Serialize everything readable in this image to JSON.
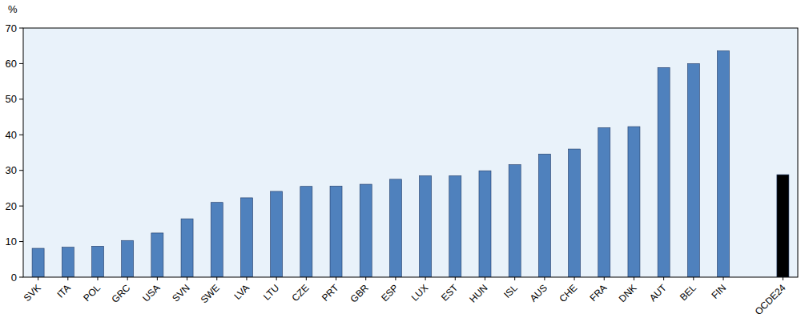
{
  "chart_data": {
    "type": "bar",
    "y_label": "%",
    "categories": [
      "SVK",
      "ITA",
      "POL",
      "GRC",
      "USA",
      "SVN",
      "SWE",
      "LVA",
      "LTU",
      "CZE",
      "PRT",
      "GBR",
      "ESP",
      "LUX",
      "EST",
      "HUN",
      "ISL",
      "AUS",
      "CHE",
      "FRA",
      "DNK",
      "AUT",
      "BEL",
      "FIN",
      null,
      "OCDE24"
    ],
    "values": [
      8.1,
      8.4,
      8.7,
      10.3,
      12.4,
      16.4,
      21.0,
      22.3,
      24.1,
      25.5,
      25.6,
      26.1,
      27.5,
      28.5,
      28.5,
      29.9,
      31.6,
      34.6,
      36.0,
      42.0,
      42.3,
      58.9,
      60.0,
      63.6,
      null,
      28.8
    ],
    "colors": [
      "#4f81bd",
      "#4f81bd",
      "#4f81bd",
      "#4f81bd",
      "#4f81bd",
      "#4f81bd",
      "#4f81bd",
      "#4f81bd",
      "#4f81bd",
      "#4f81bd",
      "#4f81bd",
      "#4f81bd",
      "#4f81bd",
      "#4f81bd",
      "#4f81bd",
      "#4f81bd",
      "#4f81bd",
      "#4f81bd",
      "#4f81bd",
      "#4f81bd",
      "#4f81bd",
      "#4f81bd",
      "#4f81bd",
      "#4f81bd",
      "#4f81bd",
      "#000000"
    ],
    "ylim": [
      0,
      70
    ],
    "yticks": [
      0,
      10,
      20,
      30,
      40,
      50,
      60,
      70
    ],
    "grid": false
  }
}
